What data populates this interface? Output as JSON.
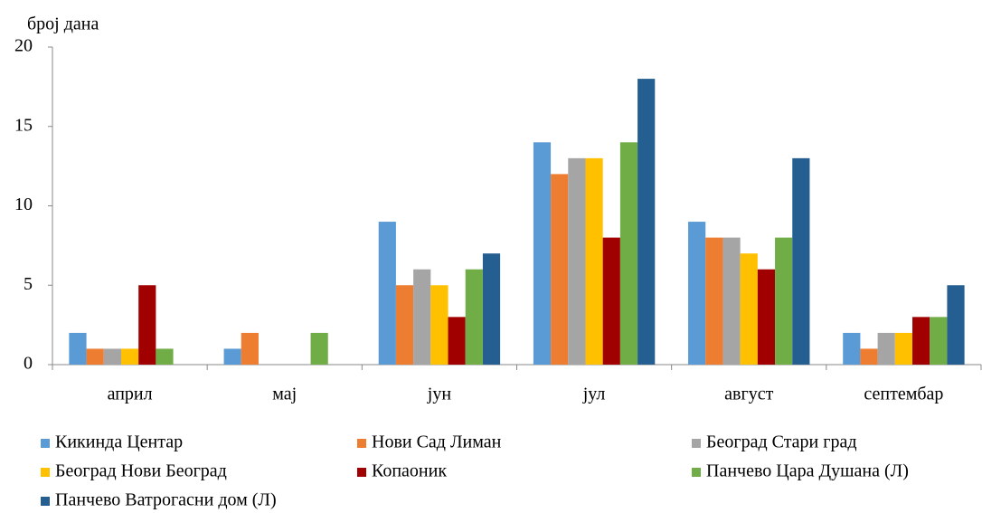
{
  "chart_data": {
    "type": "bar",
    "y_label": "број дана",
    "categories": [
      "април",
      "мај",
      "јун",
      "јул",
      "август",
      "септембар"
    ],
    "series": [
      {
        "name": "Кикинда Центар",
        "color": "#5b9bd5",
        "values": [
          2,
          1,
          9,
          14,
          9,
          2
        ]
      },
      {
        "name": "Нови Сад Лиман",
        "color": "#ed7d31",
        "values": [
          1,
          2,
          5,
          12,
          8,
          1
        ]
      },
      {
        "name": "Београд Стари град",
        "color": "#a5a5a5",
        "values": [
          1,
          0,
          6,
          13,
          8,
          2
        ]
      },
      {
        "name": "Београд Нови Београд",
        "color": "#ffc000",
        "values": [
          1,
          0,
          5,
          13,
          7,
          2
        ]
      },
      {
        "name": "Копаоник",
        "color": "#a00000",
        "values": [
          5,
          0,
          3,
          8,
          6,
          3
        ]
      },
      {
        "name": "Панчево Цара Душана (Л)",
        "color": "#70ad47",
        "values": [
          1,
          2,
          6,
          14,
          8,
          3
        ]
      },
      {
        "name": "Панчево Ватрогасни дом (Л)",
        "color": "#255e91",
        "values": [
          0,
          0,
          7,
          18,
          13,
          5
        ]
      }
    ],
    "ylim": [
      0,
      20
    ],
    "yticks": [
      0,
      5,
      10,
      15,
      20
    ],
    "grid": false
  }
}
